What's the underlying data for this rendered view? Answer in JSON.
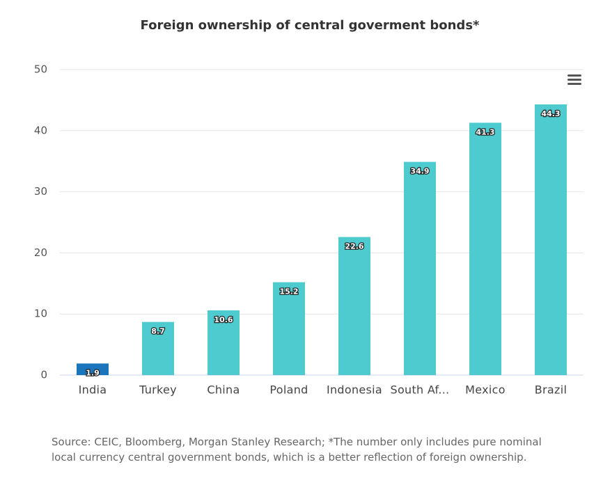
{
  "chart_data": {
    "type": "bar",
    "title": "Foreign ownership of central goverment bonds*",
    "categories": [
      "India",
      "Turkey",
      "China",
      "Poland",
      "Indonesia",
      "South Af...",
      "Mexico",
      "Brazil"
    ],
    "values": [
      1.9,
      8.7,
      10.6,
      15.2,
      22.6,
      34.9,
      41.3,
      44.3
    ],
    "colors": [
      "#1b75bb",
      "#4ecbcf",
      "#4ecbcf",
      "#4ecbcf",
      "#4ecbcf",
      "#4ecbcf",
      "#4ecbcf",
      "#4ecbcf"
    ],
    "ylim": [
      0,
      50
    ],
    "yticks": [
      0,
      10,
      20,
      30,
      40,
      50
    ],
    "grid": true,
    "source": "Source: CEIC, Bloomberg, Morgan Stanley Research; *The number only includes pure nominal local currency central government bonds, which is a better reflection of foreign ownership."
  }
}
